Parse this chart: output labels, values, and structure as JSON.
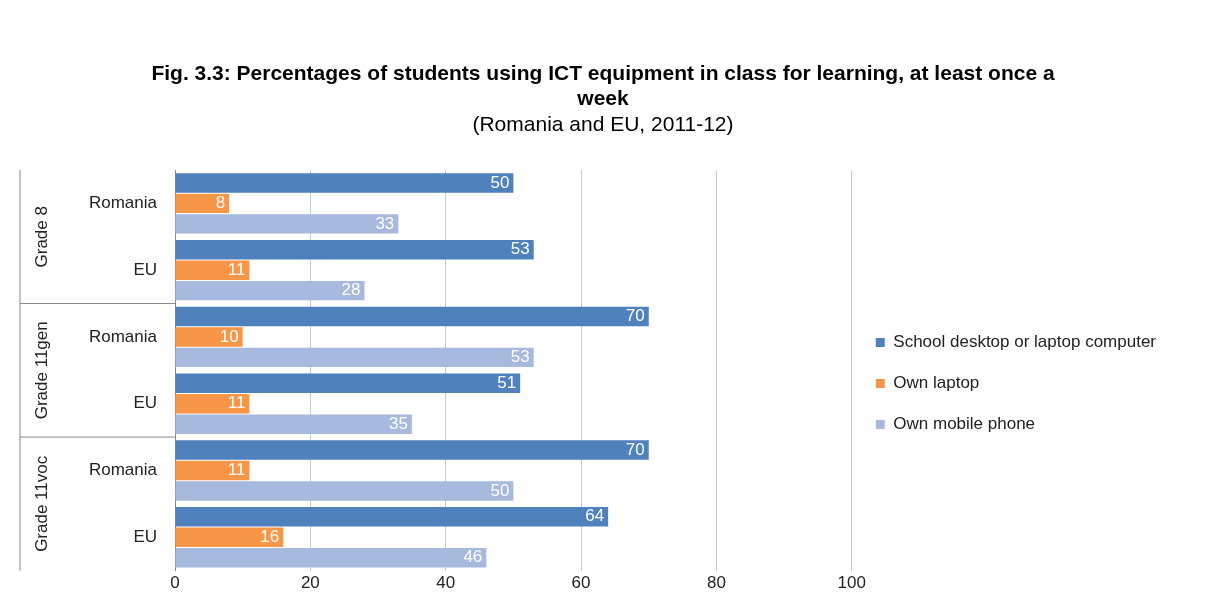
{
  "chart_data": {
    "type": "bar",
    "orientation": "horizontal",
    "title": "Fig. 3.3: Percentages of students using ICT equipment in class for learning, at least once a week",
    "subtitle": "(Romania and EU, 2011-12)",
    "categories": [
      "Romania",
      "EU",
      "Romania",
      "EU",
      "Romania",
      "EU"
    ],
    "annotations": [
      "Grade 8",
      "Grade 11gen",
      "Grade 11voc"
    ],
    "series": [
      {
        "name": "School desktop or laptop computer",
        "color": "#4f81bd",
        "values": [
          50,
          53,
          70,
          51,
          70,
          64
        ]
      },
      {
        "name": "Own laptop",
        "color": "#f79646",
        "values": [
          8,
          11,
          10,
          11,
          11,
          16
        ]
      },
      {
        "name": "Own mobile phone",
        "color": "#a7b9dc",
        "values": [
          33,
          28,
          53,
          35,
          50,
          46
        ]
      }
    ],
    "xlim": [
      0,
      100
    ],
    "xticks": [
      0,
      20,
      40,
      60,
      80,
      100
    ],
    "grid": "x",
    "legend": "right",
    "data_labels": true
  }
}
